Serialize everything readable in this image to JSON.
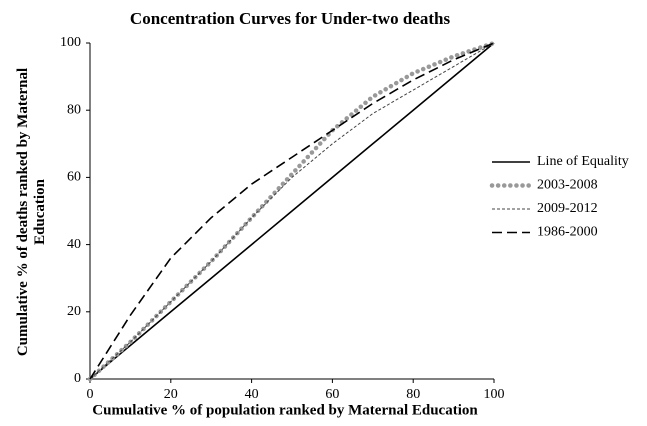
{
  "chart_data": {
    "type": "line",
    "title": "Concentration Curves for Under-two deaths",
    "xlabel": "Cumulative % of population ranked by Maternal Education",
    "ylabel": "Cumulative % of deaths ranked by Maternal Education",
    "x": [
      0,
      10,
      20,
      30,
      40,
      50,
      60,
      70,
      80,
      90,
      100
    ],
    "series": [
      {
        "name": "Line of Equality",
        "color": "#000000",
        "line_style": "solid",
        "values": [
          0,
          10,
          20,
          30,
          40,
          50,
          60,
          70,
          80,
          90,
          100
        ]
      },
      {
        "name": "2003-2008",
        "color": "#999999",
        "line_style": "dotted",
        "values": [
          0,
          11,
          23,
          35,
          48,
          61,
          74,
          84,
          91,
          96,
          100
        ]
      },
      {
        "name": "2009-2012",
        "color": "#444444",
        "line_style": "dashed",
        "values": [
          0,
          11,
          23,
          35,
          48,
          60,
          70,
          79,
          86,
          93,
          100
        ]
      },
      {
        "name": "1986-2000",
        "color": "#000000",
        "line_style": "long-dashed",
        "values": [
          0,
          19,
          36,
          48,
          58,
          66,
          74,
          82,
          89,
          95,
          100
        ]
      }
    ],
    "xlim": [
      0,
      100
    ],
    "xticks": [
      0,
      20,
      40,
      60,
      80,
      100
    ],
    "ylim": [
      0,
      100
    ],
    "yticks": [
      0,
      20,
      40,
      60,
      80,
      100
    ],
    "grid": false,
    "legend": "right"
  }
}
